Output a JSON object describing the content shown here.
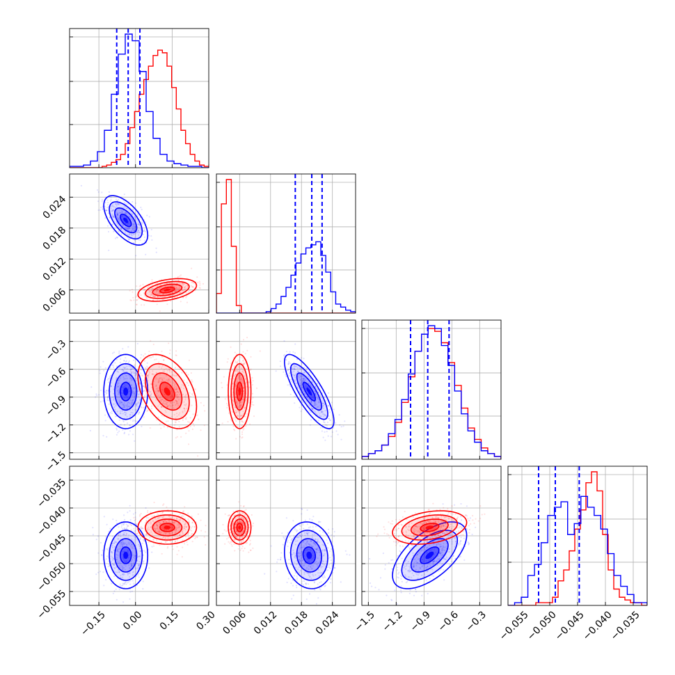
{
  "chart_data": {
    "type": "corner",
    "parameters": 4,
    "grid": true,
    "colors": {
      "series_a": "#0000ff",
      "series_b": "#ff0000"
    },
    "series": [
      {
        "color": "#0000ff",
        "style": "histogram+contours+points"
      },
      {
        "color": "#ff0000",
        "style": "histogram+contours+points"
      }
    ],
    "axes": [
      {
        "range": [
          -0.27,
          0.3
        ],
        "ticks": [
          -0.15,
          0.0,
          0.15,
          0.3
        ],
        "tick_labels": [
          "−0.15",
          "0.00",
          "0.15",
          "0.30"
        ]
      },
      {
        "range": [
          0.0015,
          0.0285
        ],
        "ticks": [
          0.006,
          0.012,
          0.018,
          0.024
        ],
        "tick_labels": [
          "0.006",
          "0.012",
          "0.018",
          "0.024"
        ]
      },
      {
        "range": [
          -1.57,
          -0.07
        ],
        "ticks": [
          -1.5,
          -1.2,
          -0.9,
          -0.6,
          -0.3
        ],
        "tick_labels": [
          "−1.5",
          "−1.2",
          "−0.9",
          "−0.6",
          "−0.3"
        ]
      },
      {
        "range": [
          -0.0575,
          -0.0325
        ],
        "ticks": [
          -0.055,
          -0.05,
          -0.045,
          -0.04,
          -0.035
        ],
        "tick_labels": [
          "−0.055",
          "−0.050",
          "−0.045",
          "−0.040",
          "−0.035"
        ]
      }
    ],
    "quantiles_blue": [
      [
        -0.077,
        -0.03,
        0.018
      ],
      [
        0.0168,
        0.02,
        0.022
      ],
      [
        -1.045,
        -0.86,
        -0.63
      ],
      [
        -0.052,
        -0.049,
        -0.0447
      ]
    ],
    "histograms": {
      "blue": [
        [
          1,
          1,
          2,
          5,
          12,
          28,
          55,
          85,
          100,
          95,
          72,
          42,
          22,
          10,
          5,
          3,
          2,
          1,
          1,
          0
        ],
        [
          0,
          0,
          0,
          0,
          0,
          0,
          0,
          0,
          0,
          0,
          1,
          3,
          6,
          11,
          17,
          25,
          33,
          39,
          43,
          45,
          47,
          38,
          27,
          14,
          6,
          4,
          2,
          1
        ],
        [
          1,
          2,
          3,
          5,
          9,
          14,
          21,
          30,
          38,
          44,
          47,
          46,
          40,
          33,
          24,
          16,
          10,
          6,
          3,
          2,
          1
        ],
        [
          0,
          1,
          3,
          11,
          15,
          23,
          33,
          36,
          38,
          26,
          30,
          40,
          36,
          33,
          28,
          19,
          11,
          7,
          4,
          1,
          1
        ]
      ],
      "red": [
        [
          0,
          0,
          0,
          0,
          0,
          0,
          0,
          1,
          2,
          4,
          6,
          10,
          18,
          30,
          42,
          55,
          66,
          76,
          84,
          88,
          86,
          76,
          60,
          44,
          28,
          18,
          10,
          5,
          2,
          1
        ],
        [
          13,
          72,
          88,
          44,
          5,
          0,
          0,
          0,
          0,
          0,
          0,
          0,
          0,
          0,
          0,
          0,
          0,
          0,
          0,
          0,
          0,
          0,
          0,
          0,
          0,
          0,
          0,
          0
        ],
        [
          1,
          2,
          3,
          5,
          8,
          13,
          20,
          29,
          38,
          44,
          46,
          45,
          41,
          34,
          26,
          18,
          11,
          7,
          4,
          2,
          1
        ],
        [
          0,
          0,
          0,
          0,
          0,
          1,
          1,
          1,
          3,
          9,
          13,
          20,
          28,
          35,
          45,
          49,
          42,
          26,
          13,
          6,
          3,
          2,
          1,
          1,
          0
        ]
      ]
    },
    "distributions": {
      "blue": {
        "mean": [
          -0.04,
          0.0195,
          -0.84,
          -0.0485
        ],
        "sd": [
          0.045,
          0.0024,
          0.2,
          0.003
        ],
        "corr": [
          [
            1.0,
            -0.6,
            0.0,
            0.0
          ],
          [
            -0.6,
            1.0,
            -0.8,
            -0.1
          ],
          [
            0.0,
            -0.8,
            1.0,
            0.6
          ],
          [
            0.0,
            -0.1,
            0.6,
            1.0
          ]
        ]
      },
      "red": {
        "mean": [
          0.13,
          0.006,
          -0.84,
          -0.0435
        ],
        "sd": [
          0.06,
          0.0011,
          0.2,
          0.0015
        ],
        "corr": [
          [
            1.0,
            0.4,
            -0.4,
            0.0
          ],
          [
            0.4,
            1.0,
            0.0,
            0.0
          ],
          [
            -0.4,
            0.0,
            1.0,
            0.3
          ],
          [
            0.0,
            0.0,
            0.3,
            1.0
          ]
        ]
      }
    }
  }
}
